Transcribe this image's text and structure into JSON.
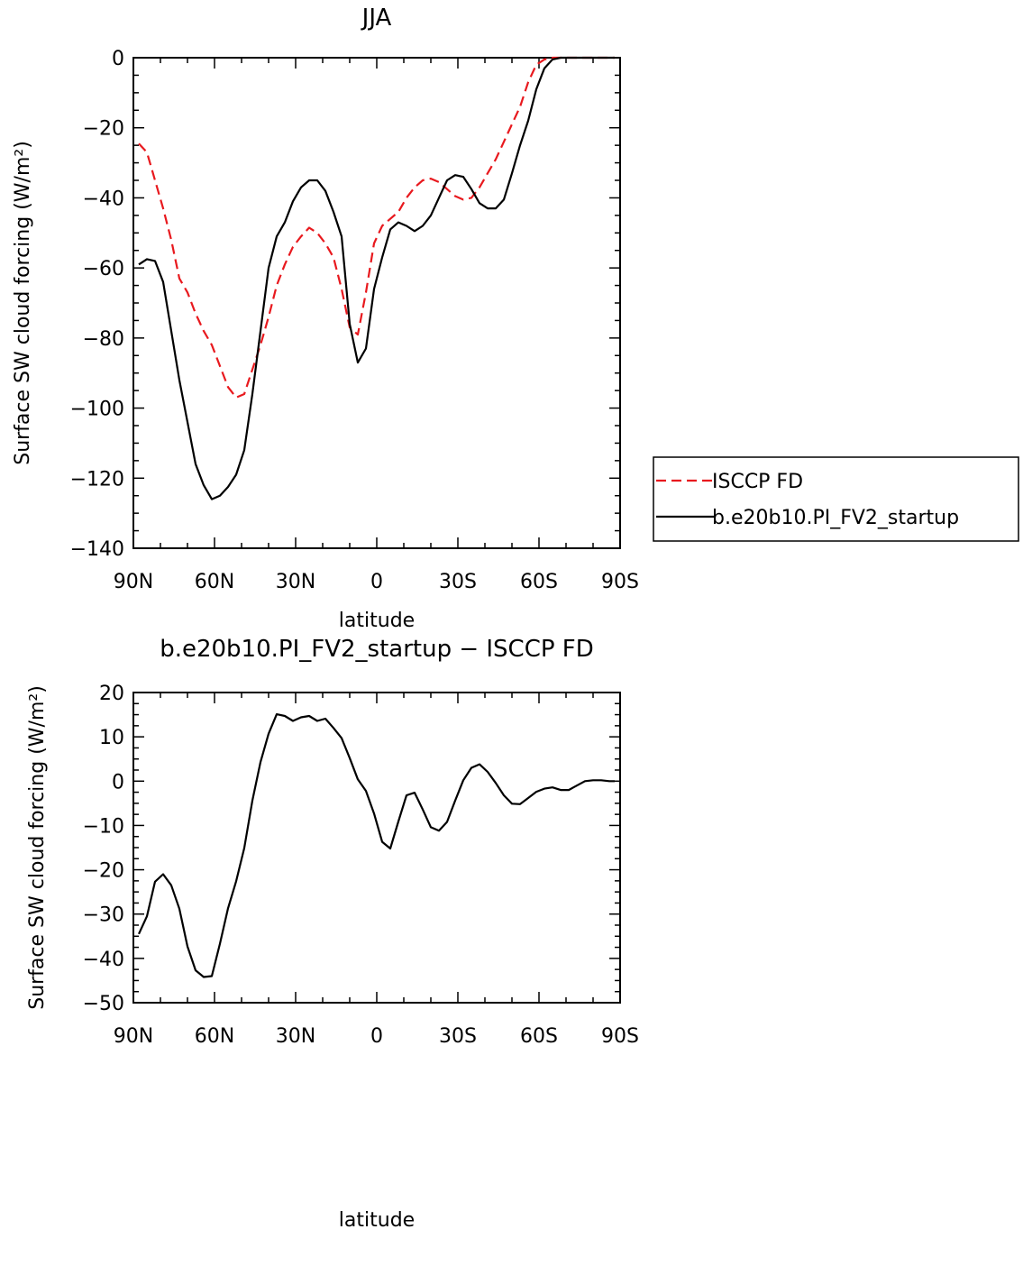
{
  "chart_data": [
    {
      "type": "line",
      "title": "JJA",
      "xlabel": "latitude",
      "ylabel": "Surface SW cloud forcing (W/m²)",
      "xlim": [
        90,
        -90
      ],
      "ylim": [
        -140,
        0
      ],
      "xticks": [
        90,
        60,
        30,
        0,
        -30,
        -60,
        -90
      ],
      "xticklabels": [
        "90N",
        "60N",
        "30N",
        "0",
        "30S",
        "60S",
        "90S"
      ],
      "yticks": [
        0,
        -20,
        -40,
        -60,
        -80,
        -100,
        -120,
        -140
      ],
      "yticklabels": [
        "0",
        "−20",
        "−40",
        "−60",
        "−80",
        "−100",
        "−120",
        "−140"
      ],
      "legend": "right",
      "series": [
        {
          "name": "ISCCP FD",
          "color": "#e8191e",
          "dash": "dashed",
          "x": [
            88,
            85,
            82,
            79,
            76,
            73,
            70,
            67,
            64,
            61,
            58,
            55,
            52,
            49,
            46,
            43,
            40,
            37,
            34,
            31,
            28,
            25,
            22,
            19,
            16,
            13,
            10,
            7,
            4,
            1,
            -2,
            -5,
            -8,
            -11,
            -14,
            -17,
            -20,
            -23,
            -26,
            -29,
            -32,
            -35,
            -38,
            -41,
            -44,
            -47,
            -50,
            -53,
            -56,
            -59,
            -62,
            -65,
            -68,
            -71,
            -74,
            -77,
            -80,
            -83,
            -86,
            -88
          ],
          "y": [
            -24.5,
            -27,
            -35,
            -43,
            -52,
            -63,
            -67,
            -73,
            -78,
            -82,
            -88,
            -94,
            -97,
            -96,
            -89,
            -82,
            -74,
            -65,
            -59,
            -54,
            -51,
            -48.5,
            -50,
            -53,
            -57,
            -66,
            -77,
            -79,
            -67,
            -53,
            -48,
            -46,
            -44,
            -40,
            -37,
            -35,
            -34.5,
            -35.5,
            -37.5,
            -39.5,
            -40.5,
            -40,
            -37,
            -33,
            -29,
            -24,
            -19,
            -14,
            -7,
            -2,
            -0.5,
            0,
            0,
            0,
            0,
            0,
            0,
            0,
            0,
            0
          ]
        },
        {
          "name": "b.e20b10.PI_FV2_startup",
          "color": "#000000",
          "dash": "solid",
          "x": [
            88,
            85,
            82,
            79,
            76,
            73,
            70,
            67,
            64,
            61,
            58,
            55,
            52,
            49,
            46,
            43,
            40,
            37,
            34,
            31,
            28,
            25,
            22,
            19,
            16,
            13,
            10,
            7,
            4,
            1,
            -2,
            -5,
            -8,
            -11,
            -14,
            -17,
            -20,
            -23,
            -26,
            -29,
            -32,
            -35,
            -38,
            -41,
            -44,
            -47,
            -50,
            -53,
            -56,
            -59,
            -62,
            -65,
            -68,
            -71,
            -74,
            -77,
            -80,
            -83,
            -86,
            -88
          ],
          "y": [
            -59,
            -57.5,
            -58,
            -64,
            -78,
            -92,
            -104,
            -116,
            -122,
            -126,
            -125,
            -122.5,
            -119,
            -112,
            -96,
            -78,
            -60,
            -51,
            -47,
            -41,
            -37,
            -35,
            -35,
            -38,
            -44,
            -51,
            -76,
            -87,
            -83,
            -66,
            -57,
            -49,
            -47,
            -48,
            -49.5,
            -48,
            -45,
            -40,
            -35,
            -33.5,
            -34,
            -37.5,
            -41.5,
            -43,
            -43,
            -40.5,
            -33,
            -25,
            -18,
            -9,
            -3,
            -0.5,
            0,
            0,
            0,
            0,
            0,
            0,
            0,
            0
          ]
        }
      ]
    },
    {
      "type": "line",
      "title": "b.e20b10.PI_FV2_startup − ISCCP FD",
      "xlabel": "latitude",
      "ylabel": "Surface SW cloud forcing (W/m²)",
      "xlim": [
        90,
        -90
      ],
      "ylim": [
        -50,
        20
      ],
      "xticks": [
        90,
        60,
        30,
        0,
        -30,
        -60,
        -90
      ],
      "xticklabels": [
        "90N",
        "60N",
        "30N",
        "0",
        "30S",
        "60S",
        "90S"
      ],
      "yticks": [
        20,
        10,
        0,
        -10,
        -20,
        -30,
        -40,
        -50
      ],
      "yticklabels": [
        "20",
        "10",
        "0",
        "−10",
        "−20",
        "−30",
        "−40",
        "−50"
      ],
      "series": [
        {
          "name": "",
          "color": "#000000",
          "dash": "solid",
          "x": [
            88,
            85,
            82,
            79,
            76,
            73,
            70,
            67,
            64,
            61,
            58,
            55,
            52,
            49,
            46,
            43,
            40,
            37,
            34,
            31,
            28,
            25,
            22,
            19,
            16,
            13,
            10,
            7,
            4,
            1,
            -2,
            -5,
            -8,
            -11,
            -14,
            -17,
            -20,
            -23,
            -26,
            -29,
            -32,
            -35,
            -38,
            -41,
            -44,
            -47,
            -50,
            -53,
            -56,
            -59,
            -62,
            -65,
            -68,
            -71,
            -74,
            -77,
            -80,
            -83,
            -86,
            -88
          ],
          "y": [
            -34.5,
            -30.5,
            -22.7,
            -21,
            -23.5,
            -28.8,
            -37.3,
            -42.7,
            -44.2,
            -44,
            -36.7,
            -28.7,
            -22.6,
            -15.1,
            -4.4,
            4.3,
            10.7,
            15.1,
            14.7,
            13.6,
            14.4,
            14.7,
            13.6,
            14.1,
            12,
            9.7,
            5.2,
            0.4,
            -2.2,
            -7.3,
            -13.7,
            -15.2,
            -9.1,
            -3.2,
            -2.6,
            -6.4,
            -10.4,
            -11.2,
            -9.2,
            -4.4,
            0.2,
            3,
            3.8,
            2.1,
            -0.4,
            -3.2,
            -5.1,
            -5.2,
            -3.8,
            -2.4,
            -1.7,
            -1.4,
            -2,
            -2,
            -1,
            0,
            0.2,
            0.2,
            0,
            0
          ]
        }
      ]
    }
  ]
}
